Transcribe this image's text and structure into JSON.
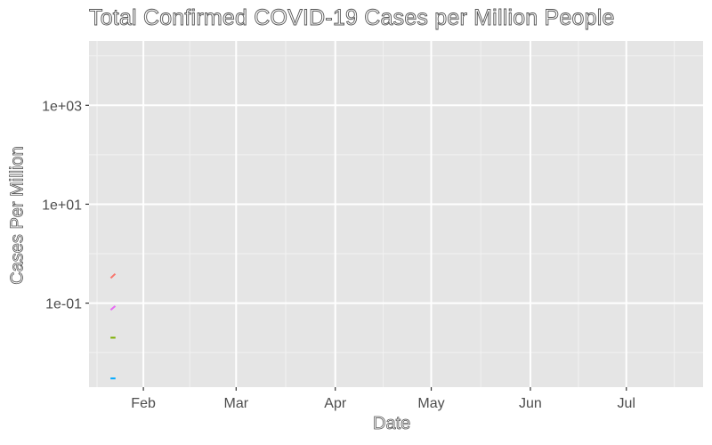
{
  "chart_data": {
    "type": "line",
    "title": "Total Confirmed COVID-19 Cases per Million People",
    "xlabel": "Date",
    "ylabel": "Cases Per Million",
    "x_type": "date",
    "y_scale": "log10",
    "xlim": [
      "2020-01-15",
      "2020-07-25"
    ],
    "ylim": [
      0.002,
      20000
    ],
    "x_ticks": [
      {
        "date": "2020-02-01",
        "label": "Feb"
      },
      {
        "date": "2020-03-01",
        "label": "Mar"
      },
      {
        "date": "2020-04-01",
        "label": "Apr"
      },
      {
        "date": "2020-05-01",
        "label": "May"
      },
      {
        "date": "2020-06-01",
        "label": "Jun"
      },
      {
        "date": "2020-07-01",
        "label": "Jul"
      }
    ],
    "y_ticks": [
      {
        "value": 0.1,
        "label": "1e-01"
      },
      {
        "value": 10,
        "label": "1e+01"
      },
      {
        "value": 1000,
        "label": "1e+03"
      }
    ],
    "grid": true,
    "legend": "none",
    "series": [
      {
        "color": "#F8766D",
        "x": [
          "2020-01-22",
          "2020-01-23"
        ],
        "y": [
          0.33,
          0.38
        ]
      },
      {
        "color": "#E76BF3",
        "x": [
          "2020-01-22",
          "2020-01-23"
        ],
        "y": [
          0.075,
          0.085
        ]
      },
      {
        "color": "#7CAE00",
        "x": [
          "2020-01-22",
          "2020-01-23"
        ],
        "y": [
          0.02,
          0.02
        ]
      },
      {
        "color": "#00A9FF",
        "x": [
          "2020-01-22",
          "2020-01-23"
        ],
        "y": [
          0.003,
          0.003
        ]
      }
    ]
  }
}
